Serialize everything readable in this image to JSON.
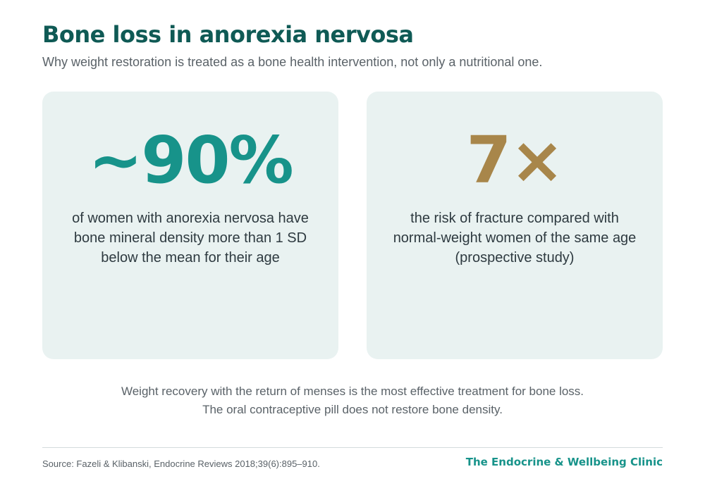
{
  "header": {
    "title": "Bone loss in anorexia nervosa",
    "subtitle": "Why weight restoration is treated as a bone health intervention, not only a nutritional one."
  },
  "cards": [
    {
      "stat": "~90%",
      "stat_color": "#17938a",
      "lines": [
        "of women with anorexia nervosa have",
        "bone mineral density more than 1 SD",
        "below the mean for their age"
      ]
    },
    {
      "stat": "7×",
      "stat_color": "#a8864a",
      "lines": [
        "the risk of fracture compared with",
        "normal-weight women of the same age",
        "(prospective study)"
      ]
    }
  ],
  "note": {
    "lines": [
      "Weight recovery with the return of menses is the most effective treatment for bone loss.",
      "The oral contraceptive pill does not restore bone density."
    ]
  },
  "footer": {
    "source": "Source: Fazeli & Klibanski, Endocrine Reviews 2018;39(6):895–910.",
    "clinic": "The Endocrine & Wellbeing Clinic"
  },
  "colors": {
    "title": "#0f5a55",
    "card_background": "#e9f2f1",
    "accent_teal": "#17938a",
    "accent_gold": "#a8864a"
  }
}
